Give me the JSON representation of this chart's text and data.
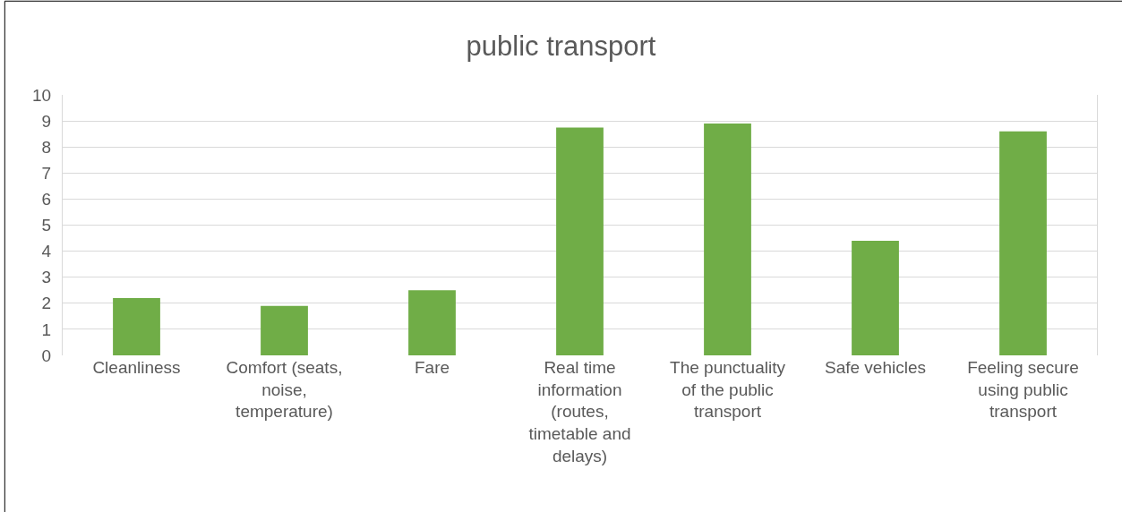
{
  "chart_data": {
    "type": "bar",
    "title": "public transport",
    "categories": [
      "Cleanliness",
      "Comfort (seats, noise, temperature)",
      "Fare",
      "Real time information (routes, timetable and delays)",
      "The punctuality of the public transport",
      "Safe vehicles",
      "Feeling secure using public transport"
    ],
    "values": [
      2.2,
      1.9,
      2.5,
      8.75,
      8.9,
      4.4,
      8.6
    ],
    "color": "#70ad47",
    "ylim": [
      0,
      10
    ],
    "yticks": [
      0,
      1,
      2,
      3,
      4,
      5,
      6,
      7,
      8,
      9,
      10
    ],
    "grid": "y"
  }
}
